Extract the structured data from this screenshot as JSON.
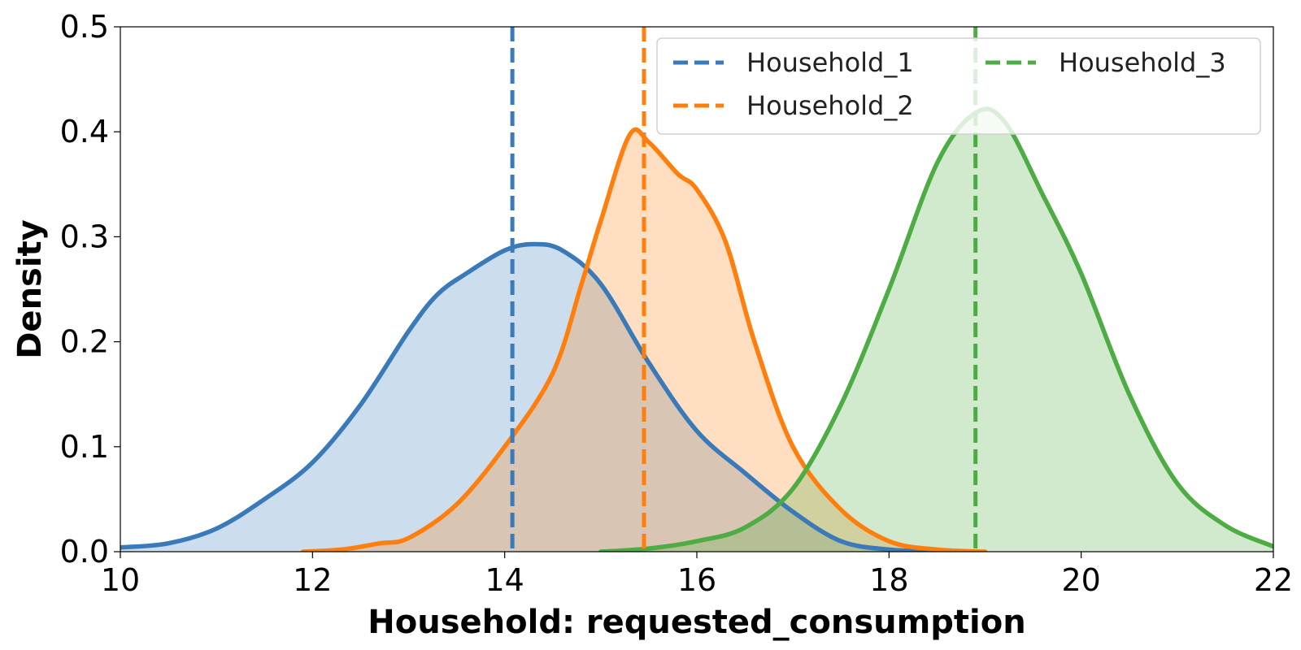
{
  "chart_data": {
    "type": "area",
    "title": "",
    "xlabel": "Household: requested_consumption",
    "ylabel": "Density",
    "xlim": [
      10,
      22
    ],
    "ylim": [
      0,
      0.5
    ],
    "x_ticks": [
      "10",
      "12",
      "14",
      "16",
      "18",
      "20",
      "22"
    ],
    "y_ticks": [
      "0.0",
      "0.1",
      "0.2",
      "0.3",
      "0.4",
      "0.5"
    ],
    "grid": false,
    "legend": {
      "placement": "top-right",
      "columns": 2
    },
    "series": [
      {
        "name": "Household_1",
        "color": "#3a7ab8",
        "fill_color": "#3a7ab8",
        "mean_line": 14.08,
        "points": [
          [
            10,
            0.004
          ],
          [
            10.5,
            0.008
          ],
          [
            11,
            0.022
          ],
          [
            11.5,
            0.05
          ],
          [
            12,
            0.085
          ],
          [
            12.5,
            0.14
          ],
          [
            13,
            0.21
          ],
          [
            13.3,
            0.245
          ],
          [
            13.6,
            0.265
          ],
          [
            14,
            0.287
          ],
          [
            14.3,
            0.293
          ],
          [
            14.6,
            0.287
          ],
          [
            15,
            0.255
          ],
          [
            15.5,
            0.18
          ],
          [
            16,
            0.115
          ],
          [
            16.5,
            0.075
          ],
          [
            17,
            0.038
          ],
          [
            17.5,
            0.01
          ],
          [
            18,
            0.002
          ],
          [
            18.5,
            0.0
          ]
        ]
      },
      {
        "name": "Household_2",
        "color": "#ff7f0e",
        "fill_color": "#ff7f0e",
        "mean_line": 15.45,
        "points": [
          [
            11.9,
            0.0
          ],
          [
            12.3,
            0.002
          ],
          [
            12.7,
            0.008
          ],
          [
            13,
            0.013
          ],
          [
            13.5,
            0.045
          ],
          [
            14,
            0.1
          ],
          [
            14.5,
            0.17
          ],
          [
            14.8,
            0.255
          ],
          [
            15,
            0.315
          ],
          [
            15.3,
            0.397
          ],
          [
            15.5,
            0.39
          ],
          [
            15.8,
            0.36
          ],
          [
            16,
            0.345
          ],
          [
            16.3,
            0.295
          ],
          [
            16.6,
            0.2
          ],
          [
            17,
            0.1
          ],
          [
            17.5,
            0.04
          ],
          [
            18,
            0.01
          ],
          [
            18.5,
            0.002
          ],
          [
            19,
            0.0
          ]
        ]
      },
      {
        "name": "Household_3",
        "color": "#4dac43",
        "fill_color": "#4dac43",
        "mean_line": 18.9,
        "points": [
          [
            15,
            0.0
          ],
          [
            15.5,
            0.003
          ],
          [
            16,
            0.01
          ],
          [
            16.5,
            0.023
          ],
          [
            17,
            0.06
          ],
          [
            17.5,
            0.14
          ],
          [
            18,
            0.25
          ],
          [
            18.5,
            0.37
          ],
          [
            18.9,
            0.418
          ],
          [
            19.2,
            0.41
          ],
          [
            19.6,
            0.34
          ],
          [
            20,
            0.265
          ],
          [
            20.5,
            0.15
          ],
          [
            21,
            0.065
          ],
          [
            21.5,
            0.025
          ],
          [
            22,
            0.005
          ]
        ]
      }
    ]
  }
}
